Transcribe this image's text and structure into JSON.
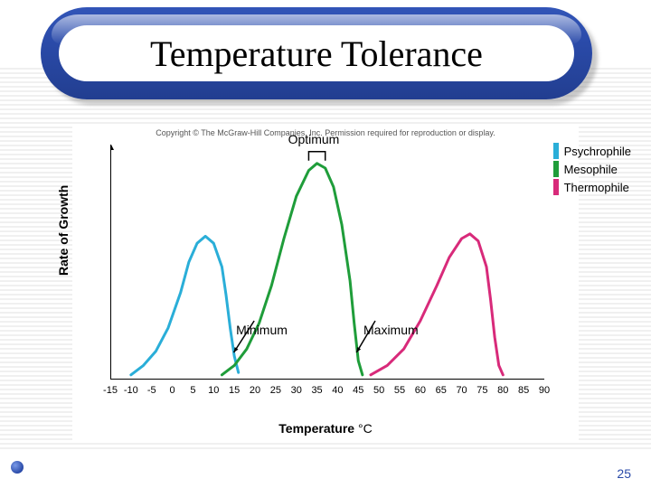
{
  "slide": {
    "title": "Temperature Tolerance",
    "page_number": "25",
    "background": "#ffffff",
    "stripe_color": "#f0f0f0",
    "title_pill_gradient": [
      "#3255b8",
      "#223e90"
    ],
    "title_fontsize": 40
  },
  "chart": {
    "type": "line",
    "copyright": "Copyright © The McGraw-Hill Companies, Inc. Permission required for reproduction or display.",
    "ylabel": "Rate of Growth",
    "xlabel_prefix": "Temperature ",
    "xlabel_unit": "°C",
    "label_fontsize": 14,
    "background_color": "#ffffff",
    "axis_color": "#000000",
    "xlim": [
      -15,
      90
    ],
    "ylim": [
      0,
      100
    ],
    "xticks": [
      -15,
      -10,
      -5,
      0,
      5,
      10,
      15,
      20,
      25,
      30,
      35,
      40,
      45,
      50,
      55,
      60,
      65,
      70,
      75,
      80,
      85,
      90
    ],
    "line_width": 3,
    "curves": [
      {
        "name": "Psychrophile",
        "color": "#2aaed8",
        "points": [
          [
            -10,
            2
          ],
          [
            -7,
            6
          ],
          [
            -4,
            12
          ],
          [
            -1,
            22
          ],
          [
            2,
            37
          ],
          [
            4,
            50
          ],
          [
            6,
            58
          ],
          [
            8,
            61
          ],
          [
            10,
            58
          ],
          [
            12,
            48
          ],
          [
            13,
            36
          ],
          [
            14,
            22
          ],
          [
            15,
            10
          ],
          [
            16,
            3
          ]
        ]
      },
      {
        "name": "Mesophile",
        "color": "#1f9d3a",
        "points": [
          [
            12,
            2
          ],
          [
            15,
            6
          ],
          [
            18,
            13
          ],
          [
            21,
            24
          ],
          [
            24,
            40
          ],
          [
            27,
            60
          ],
          [
            30,
            78
          ],
          [
            33,
            89
          ],
          [
            35,
            92
          ],
          [
            37,
            90
          ],
          [
            39,
            82
          ],
          [
            41,
            66
          ],
          [
            43,
            42
          ],
          [
            44,
            24
          ],
          [
            45,
            8
          ],
          [
            46,
            2
          ]
        ]
      },
      {
        "name": "Thermophile",
        "color": "#d82a7a",
        "points": [
          [
            48,
            2
          ],
          [
            52,
            6
          ],
          [
            56,
            13
          ],
          [
            60,
            25
          ],
          [
            64,
            40
          ],
          [
            67,
            52
          ],
          [
            70,
            60
          ],
          [
            72,
            62
          ],
          [
            74,
            59
          ],
          [
            76,
            48
          ],
          [
            77,
            34
          ],
          [
            78,
            18
          ],
          [
            79,
            6
          ],
          [
            80,
            2
          ]
        ]
      }
    ],
    "annotations": {
      "optimum": {
        "label": "Optimum",
        "x": 35,
        "bracket_x": [
          33,
          37
        ],
        "bracket_y": 97
      },
      "minimum": {
        "label": "Minimum",
        "x": 22,
        "arrow_to_x": 14,
        "arrow_to_y": 10
      },
      "maximum": {
        "label": "Maximum",
        "x": 48,
        "arrow_to_x": 45,
        "arrow_to_y": 10
      }
    },
    "legend": {
      "items": [
        {
          "label": "Psychrophile",
          "color": "#2aaed8"
        },
        {
          "label": "Mesophile",
          "color": "#1f9d3a"
        },
        {
          "label": "Thermophile",
          "color": "#d82a7a"
        }
      ]
    }
  }
}
